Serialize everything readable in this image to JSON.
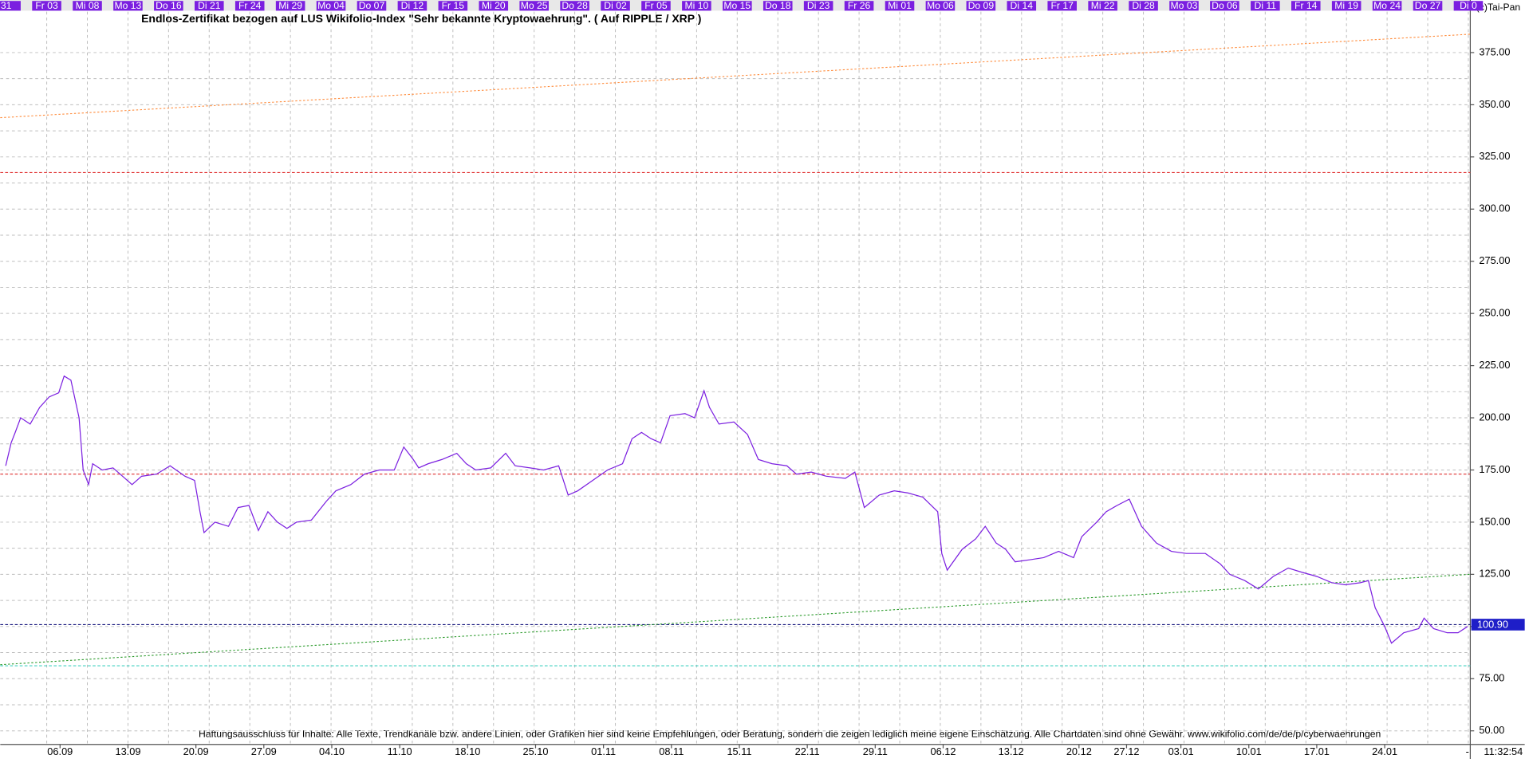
{
  "header": {
    "copyright": "(c)Tai-Pan",
    "time": "11:32:54",
    "dash": "-"
  },
  "chart_data": {
    "type": "line",
    "title": "Endlos-Zertifikat bezogen auf LUS Wikifolio-Index \"Sehr bekannte Kryptowaehrung\". ( Auf RIPPLE / XRP )",
    "annotation": "Haftungsausschluss für Inhalte: Alle Texte, Trendkanäle bzw. andere Linien, oder Grafiken hier sind keine Empfehlungen, oder Beratung, sondern die zeigen lediglich meine eigene Einschätzung. Alle Chartdaten sind ohne Gewähr.  www.wikifolio.com/de/de/p/cyberwaehrungen",
    "day_labels": [
      "31",
      "Fr 03",
      "Mi 08",
      "Mo 13",
      "Do 16",
      "Di 21",
      "Fr 24",
      "Mi 29",
      "Mo 04",
      "Do 07",
      "Di 12",
      "Fr 15",
      "Mi 20",
      "Mo 25",
      "Do 28",
      "Di 02",
      "Fr 05",
      "Mi 10",
      "Mo 15",
      "Do 18",
      "Di 23",
      "Fr 26",
      "Mi 01",
      "Mo 06",
      "Do 09",
      "Di 14",
      "Fr 17",
      "Mi 22",
      "Di 28",
      "Mo 03",
      "Do 06",
      "Di 11",
      "Fr 14",
      "Mi 19",
      "Mo 24",
      "Do 27",
      "Di 0"
    ],
    "x": [
      -4.0,
      -3.6,
      -3.3,
      -2.9,
      -2.2,
      -1.5,
      -0.8,
      -0.1,
      0.3,
      0.8,
      1.4,
      1.7,
      2.1,
      2.4,
      3.1,
      3.9,
      4.6,
      5.3,
      6.0,
      7.1,
      8.1,
      9.2,
      9.9,
      10.3,
      10.6,
      11.4,
      12.4,
      13.1,
      13.9,
      14.6,
      15.3,
      16.0,
      16.7,
      17.4,
      18.5,
      19.6,
      20.3,
      21.4,
      22.4,
      23.5,
      24.6,
      25.3,
      26.0,
      26.4,
      27.1,
      28.1,
      29.2,
      29.9,
      30.6,
      31.7,
      32.8,
      33.5,
      34.6,
      35.6,
      36.7,
      37.4,
      38.1,
      39.2,
      40.3,
      41.4,
      42.1,
      42.8,
      43.5,
      44.2,
      44.9,
      46.0,
      46.7,
      47.4,
      47.8,
      48.5,
      49.6,
      50.6,
      51.4,
      52.4,
      53.5,
      54.2,
      55.3,
      56.4,
      57.8,
      58.5,
      59.2,
      60.3,
      61.4,
      62.4,
      63.5,
      64.6,
      64.9,
      65.3,
      66.4,
      67.4,
      68.1,
      68.9,
      69.6,
      70.3,
      71.4,
      72.4,
      73.5,
      74.6,
      75.2,
      76.3,
      77.0,
      77.8,
      78.7,
      79.6,
      80.7,
      81.8,
      82.9,
      84.3,
      85.4,
      86.1,
      87.2,
      88.2,
      89.3,
      90.4,
      91.4,
      92.5,
      93.6,
      94.6,
      95.7,
      96.3,
      96.8,
      97.5,
      98.0,
      98.9,
      100.0,
      100.4,
      101.1,
      102.1,
      102.9,
      103.6
    ],
    "values": [
      177,
      188,
      193,
      200,
      197,
      205,
      210,
      212,
      220,
      218,
      200,
      175,
      168,
      178,
      175,
      176,
      172,
      168,
      172,
      173,
      177,
      172,
      170,
      155,
      145,
      150,
      148,
      157,
      158,
      146,
      155,
      150,
      147,
      150,
      151,
      160,
      165,
      168,
      173,
      175,
      175,
      186,
      180,
      176,
      178,
      180,
      183,
      178,
      175,
      176,
      183,
      177,
      176,
      175,
      177,
      163,
      165,
      170,
      175,
      178,
      190,
      193,
      190,
      188,
      201,
      202,
      200,
      213,
      205,
      197,
      198,
      192,
      180,
      178,
      177,
      173,
      174,
      172,
      171,
      174,
      157,
      163,
      165,
      164,
      162,
      155,
      135,
      127,
      137,
      142,
      148,
      140,
      137,
      131,
      132,
      133,
      136,
      133,
      143,
      150,
      155,
      158,
      161,
      148,
      140,
      136,
      135,
      135,
      130,
      125,
      122,
      118,
      124,
      128,
      126,
      124,
      121,
      120,
      121,
      122,
      109,
      100,
      92,
      97,
      99,
      104,
      99,
      97,
      97,
      100
    ],
    "color": "#7b1fe0",
    "xlim": [
      -4.4,
      103.8
    ],
    "xticks": [
      {
        "value": 0,
        "label": "06.09"
      },
      {
        "value": 5,
        "label": "13.09"
      },
      {
        "value": 10,
        "label": "20.09"
      },
      {
        "value": 15,
        "label": "27.09"
      },
      {
        "value": 20,
        "label": "04.10"
      },
      {
        "value": 25,
        "label": "11.10"
      },
      {
        "value": 30,
        "label": "18.10"
      },
      {
        "value": 35,
        "label": "25.10"
      },
      {
        "value": 40,
        "label": "01.11"
      },
      {
        "value": 45,
        "label": "08.11"
      },
      {
        "value": 50,
        "label": "15.11"
      },
      {
        "value": 55,
        "label": "22.11"
      },
      {
        "value": 60,
        "label": "29.11"
      },
      {
        "value": 65,
        "label": "06.12"
      },
      {
        "value": 70,
        "label": "13.12"
      },
      {
        "value": 75,
        "label": "20.12"
      },
      {
        "value": 78.5,
        "label": "27.12"
      },
      {
        "value": 82.5,
        "label": "03.01"
      },
      {
        "value": 87.5,
        "label": "10.01"
      },
      {
        "value": 92.5,
        "label": "17.01"
      },
      {
        "value": 97.5,
        "label": "24.01"
      }
    ],
    "ylim": [
      43.5,
      394.6
    ],
    "yticks": [
      {
        "value": 50,
        "label": "50.00"
      },
      {
        "value": 75,
        "label": "75.00"
      },
      {
        "value": 100,
        "label": "100.00"
      },
      {
        "value": 125,
        "label": "125.00"
      },
      {
        "value": 150,
        "label": "150.00"
      },
      {
        "value": 175,
        "label": "175.00"
      },
      {
        "value": 200,
        "label": "200.00"
      },
      {
        "value": 225,
        "label": "225.00"
      },
      {
        "value": 250,
        "label": "250.00"
      },
      {
        "value": 275,
        "label": "275.00"
      },
      {
        "value": 300,
        "label": "300.00"
      },
      {
        "value": 325,
        "label": "325.00"
      },
      {
        "value": 350,
        "label": "350.00"
      },
      {
        "value": 375,
        "label": "375.00"
      }
    ],
    "grid": true,
    "hlines": [
      {
        "value": 317.5,
        "color": "#e03030"
      },
      {
        "value": 173,
        "color": "#e03030"
      },
      {
        "value": 81.2,
        "color": "#40d0c0"
      },
      {
        "value": 100.9,
        "color": "#1a1a80"
      }
    ],
    "trendlines": [
      {
        "values": [
          343.8,
          383.8
        ],
        "color": "#ff8c3c"
      },
      {
        "values": [
          81.7,
          125
        ],
        "color": "#2a9a2a"
      }
    ],
    "last": {
      "value": 100.9,
      "label": "100.90",
      "color": "#1e1ec8"
    }
  }
}
